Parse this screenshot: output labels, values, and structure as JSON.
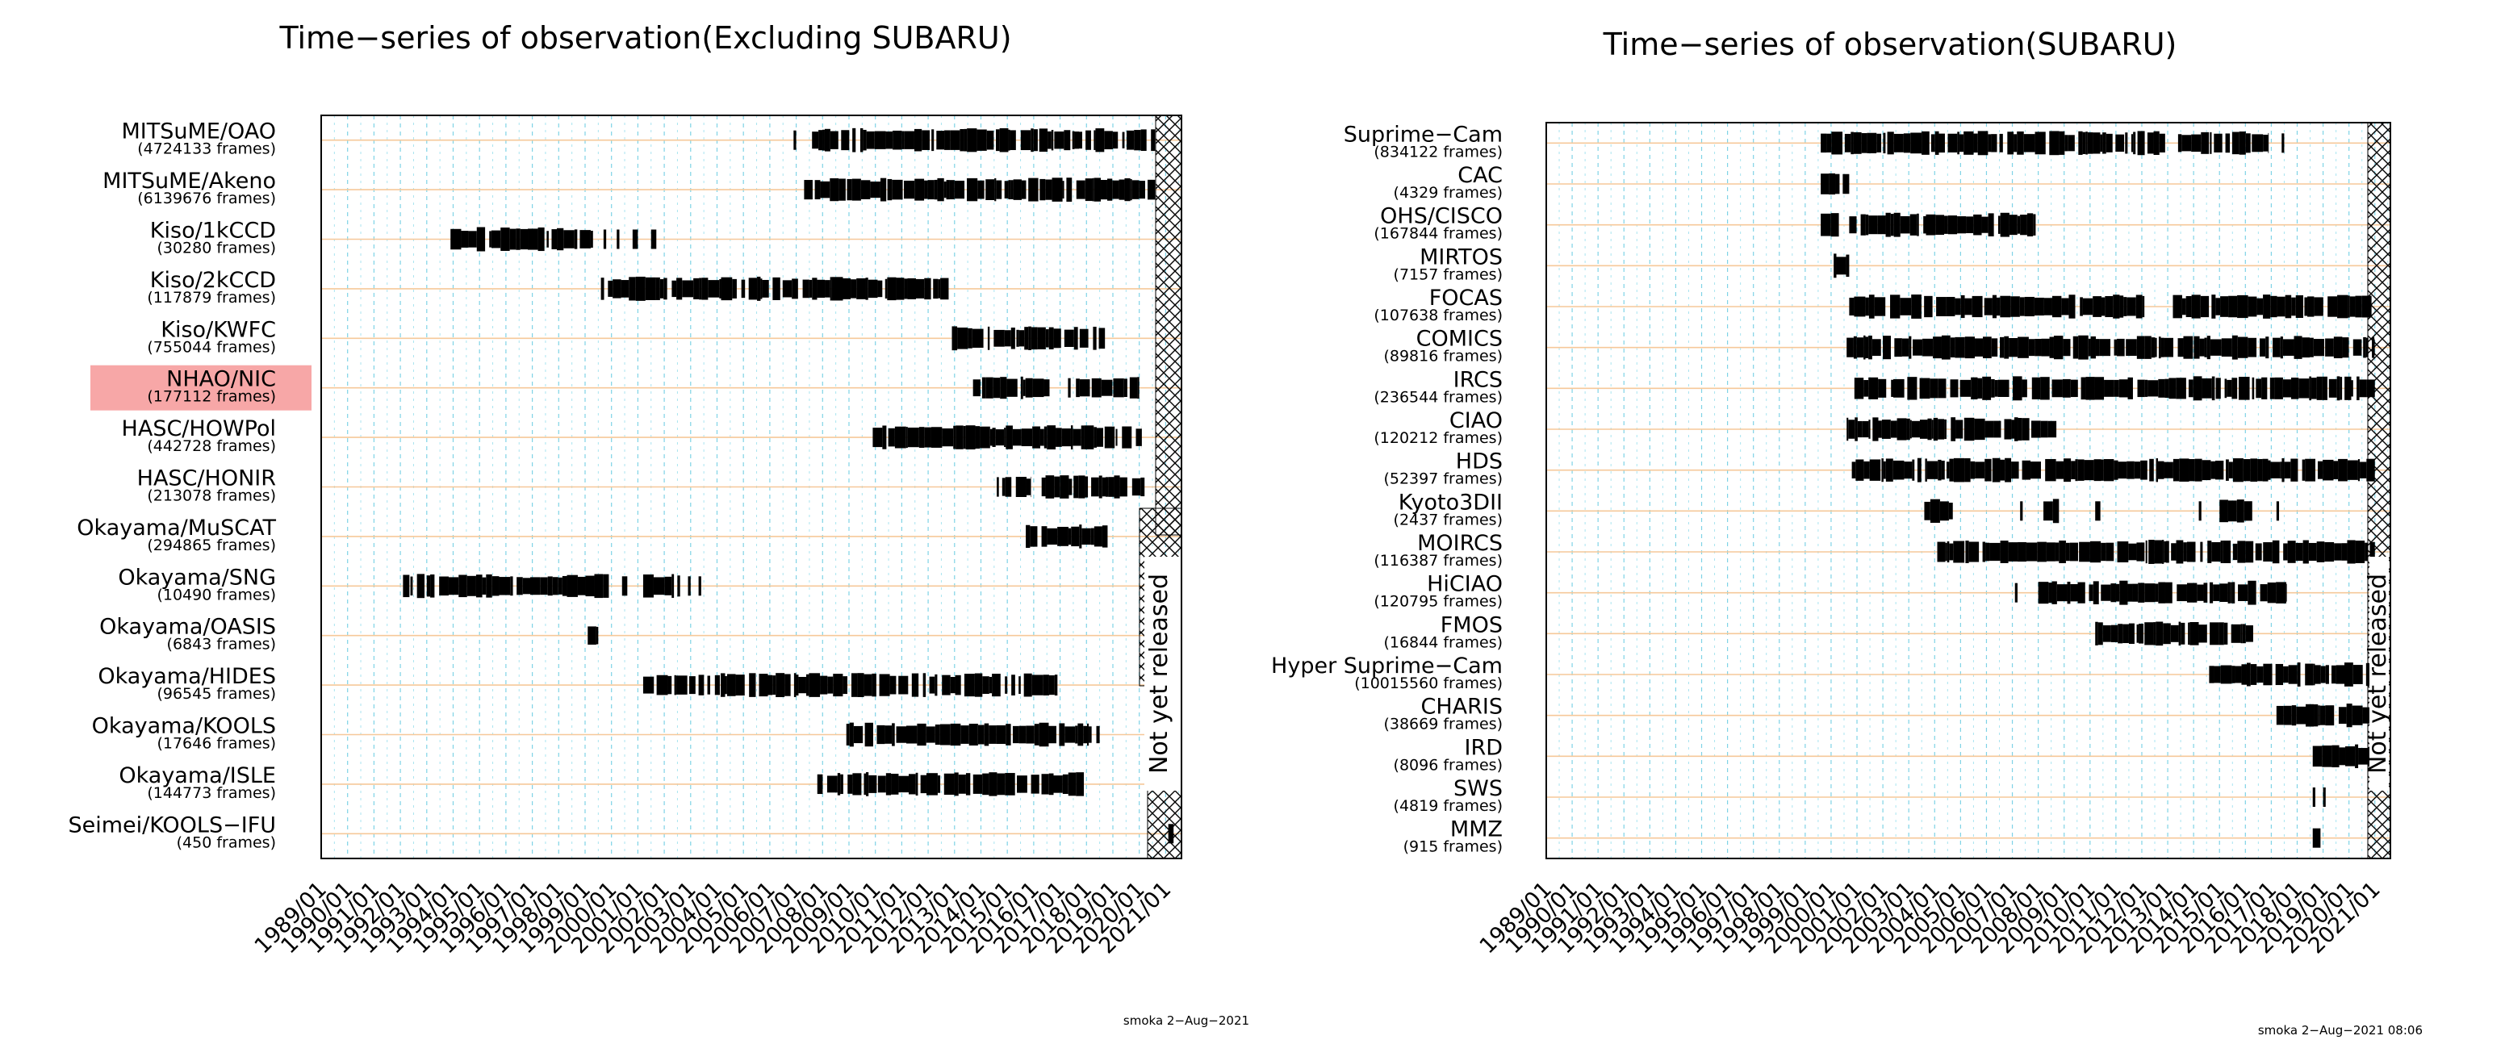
{
  "chart_data": [
    {
      "type": "timeline",
      "title": "Time−series of observation(Excluding SUBARU)",
      "x_ticks": [
        "1989/01",
        "1990/01",
        "1991/01",
        "1992/01",
        "1993/01",
        "1994/01",
        "1995/01",
        "1996/01",
        "1997/01",
        "1998/01",
        "1999/01",
        "2000/01",
        "2001/01",
        "2002/01",
        "2003/01",
        "2004/01",
        "2005/01",
        "2006/01",
        "2007/01",
        "2008/01",
        "2009/01",
        "2010/01",
        "2011/01",
        "2012/01",
        "2013/01",
        "2014/01",
        "2015/01",
        "2016/01",
        "2017/01",
        "2018/01",
        "2019/01",
        "2020/01",
        "2021/01"
      ],
      "xlim": [
        1989.0,
        2021.6
      ],
      "not_released_label": "Not yet released",
      "footer": "smoka 2−Aug−2021",
      "instruments": [
        {
          "name": "MITSuME/OAO",
          "frames": "(4724133 frames)",
          "highlight": false,
          "not_released_from": 2020.6,
          "segments": [
            [
              2006.9,
              2007.0
            ],
            [
              2007.6,
              2020.6
            ]
          ]
        },
        {
          "name": "MITSuME/Akeno",
          "frames": "(6139676 frames)",
          "highlight": false,
          "not_released_from": 2020.6,
          "segments": [
            [
              2007.3,
              2020.6
            ]
          ]
        },
        {
          "name": "Kiso/1kCCD",
          "frames": "(30280 frames)",
          "highlight": false,
          "segments": [
            [
              1993.9,
              1999.3
            ],
            [
              1999.7,
              1999.8
            ],
            [
              2000.2,
              2000.3
            ],
            [
              2000.8,
              2001.0
            ],
            [
              2001.5,
              2001.7
            ]
          ]
        },
        {
          "name": "Kiso/2kCCD",
          "frames": "(117879 frames)",
          "highlight": false,
          "segments": [
            [
              1999.6,
              2012.9
            ]
          ]
        },
        {
          "name": "Kiso/KWFC",
          "frames": "(755044 frames)",
          "highlight": false,
          "segments": [
            [
              2012.9,
              2018.7
            ]
          ]
        },
        {
          "name": "NHAO/NIC",
          "frames": "(177112 frames)",
          "highlight": true,
          "not_released_from": 2020.0,
          "segments": [
            [
              2013.7,
              2016.6
            ],
            [
              2017.3,
              2017.4
            ],
            [
              2017.6,
              2020.0
            ]
          ]
        },
        {
          "name": "HASC/HOWPol",
          "frames": "(442728 frames)",
          "highlight": false,
          "not_released_from": 2020.1,
          "segments": [
            [
              2009.9,
              2020.1
            ]
          ]
        },
        {
          "name": "HASC/HONIR",
          "frames": "(213078 frames)",
          "highlight": false,
          "not_released_from": 2020.2,
          "segments": [
            [
              2014.6,
              2015.9
            ],
            [
              2016.3,
              2020.2
            ]
          ]
        },
        {
          "name": "Okayama/MuSCAT",
          "frames": "(294865 frames)",
          "highlight": false,
          "not_released_from": 2019.9,
          "segments": [
            [
              2015.7,
              2018.8
            ]
          ]
        },
        {
          "name": "Okayama/SNG",
          "frames": "(10490 frames)",
          "highlight": false,
          "segments": [
            [
              1992.1,
              1999.9
            ],
            [
              2000.4,
              2000.6
            ],
            [
              2001.2,
              2002.6
            ],
            [
              2002.9,
              2003.0
            ],
            [
              2003.3,
              2003.4
            ]
          ]
        },
        {
          "name": "Okayama/OASIS",
          "frames": "(6843 frames)",
          "highlight": false,
          "segments": [
            [
              1999.1,
              1999.5
            ]
          ]
        },
        {
          "name": "Okayama/HIDES",
          "frames": "(96545 frames)",
          "highlight": false,
          "segments": [
            [
              2001.2,
              2016.9
            ]
          ]
        },
        {
          "name": "Okayama/KOOLS",
          "frames": "(17646 frames)",
          "highlight": false,
          "segments": [
            [
              2008.9,
              2018.5
            ]
          ]
        },
        {
          "name": "Okayama/ISLE",
          "frames": "(144773 frames)",
          "highlight": false,
          "segments": [
            [
              2007.8,
              2017.9
            ]
          ]
        },
        {
          "name": "Seimei/KOOLS−IFU",
          "frames": "(450 frames)",
          "highlight": false,
          "not_released_from": 2020.0,
          "segments": [
            [
              2021.1,
              2021.3
            ]
          ]
        }
      ]
    },
    {
      "type": "timeline",
      "title": "Time−series of observation(SUBARU)",
      "x_ticks": [
        "1989/01",
        "1990/01",
        "1991/01",
        "1992/01",
        "1993/01",
        "1994/01",
        "1995/01",
        "1996/01",
        "1997/01",
        "1998/01",
        "1999/01",
        "2000/01",
        "2001/01",
        "2002/01",
        "2003/01",
        "2004/01",
        "2005/01",
        "2006/01",
        "2007/01",
        "2008/01",
        "2009/01",
        "2010/01",
        "2011/01",
        "2012/01",
        "2013/01",
        "2014/01",
        "2015/01",
        "2016/01",
        "2017/01",
        "2018/01",
        "2019/01",
        "2020/01",
        "2021/01"
      ],
      "xlim": [
        1989.0,
        2021.6
      ],
      "not_released_label": "Not yet released",
      "footer": "smoka 2−Aug−2021 08:06",
      "instruments": [
        {
          "name": "Suprime−Cam",
          "frames": "(834122 frames)",
          "segments": [
            [
              1999.6,
              2012.9
            ],
            [
              2013.4,
              2016.9
            ],
            [
              2017.4,
              2017.5
            ]
          ]
        },
        {
          "name": "CAC",
          "frames": "(4329 frames)",
          "segments": [
            [
              1999.6,
              2000.7
            ]
          ]
        },
        {
          "name": "OHS/CISCO",
          "frames": "(167844 frames)",
          "segments": [
            [
              1999.6,
              2000.3
            ],
            [
              2000.7,
              2007.9
            ]
          ]
        },
        {
          "name": "MIRTOS",
          "frames": "(7157 frames)",
          "segments": [
            [
              2000.1,
              2000.7
            ]
          ]
        },
        {
          "name": "FOCAS",
          "frames": "(107638 frames)",
          "segments": [
            [
              2000.7,
              2012.1
            ],
            [
              2013.2,
              2021.0
            ]
          ]
        },
        {
          "name": "COMICS",
          "frames": "(89816 frames)",
          "segments": [
            [
              2000.6,
              2021.0
            ]
          ]
        },
        {
          "name": "IRCS",
          "frames": "(236544 frames)",
          "segments": [
            [
              2000.9,
              2021.0
            ]
          ]
        },
        {
          "name": "CIAO",
          "frames": "(120212 frames)",
          "segments": [
            [
              2000.6,
              2008.7
            ]
          ]
        },
        {
          "name": "HDS",
          "frames": "(52397 frames)",
          "segments": [
            [
              2000.8,
              2021.0
            ]
          ]
        },
        {
          "name": "Kyoto3DII",
          "frames": "(2437 frames)",
          "segments": [
            [
              2003.6,
              2004.7
            ],
            [
              2007.3,
              2007.4
            ],
            [
              2008.2,
              2008.8
            ],
            [
              2010.2,
              2010.4
            ],
            [
              2014.2,
              2014.3
            ],
            [
              2015.0,
              2016.4
            ],
            [
              2017.2,
              2017.3
            ]
          ]
        },
        {
          "name": "MOIRCS",
          "frames": "(116387 frames)",
          "segments": [
            [
              2004.1,
              2021.0
            ]
          ]
        },
        {
          "name": "HiCIAO",
          "frames": "(120795 frames)",
          "segments": [
            [
              2007.1,
              2007.2
            ],
            [
              2008.0,
              2017.6
            ]
          ]
        },
        {
          "name": "FMOS",
          "frames": "(16844 frames)",
          "segments": [
            [
              2010.2,
              2016.3
            ]
          ]
        },
        {
          "name": "Hyper Suprime−Cam",
          "frames": "(10015560 frames)",
          "segments": [
            [
              2014.6,
              2021.0
            ]
          ]
        },
        {
          "name": "CHARIS",
          "frames": "(38669 frames)",
          "segments": [
            [
              2017.2,
              2020.9
            ]
          ]
        },
        {
          "name": "IRD",
          "frames": "(8096 frames)",
          "segments": [
            [
              2018.6,
              2021.0
            ]
          ]
        },
        {
          "name": "SWS",
          "frames": "(4819 frames)",
          "segments": [
            [
              2018.6,
              2018.7
            ],
            [
              2019.0,
              2019.1
            ]
          ]
        },
        {
          "name": "MMZ",
          "frames": "(915 frames)",
          "segments": [
            [
              2018.6,
              2018.9
            ]
          ]
        }
      ]
    }
  ]
}
